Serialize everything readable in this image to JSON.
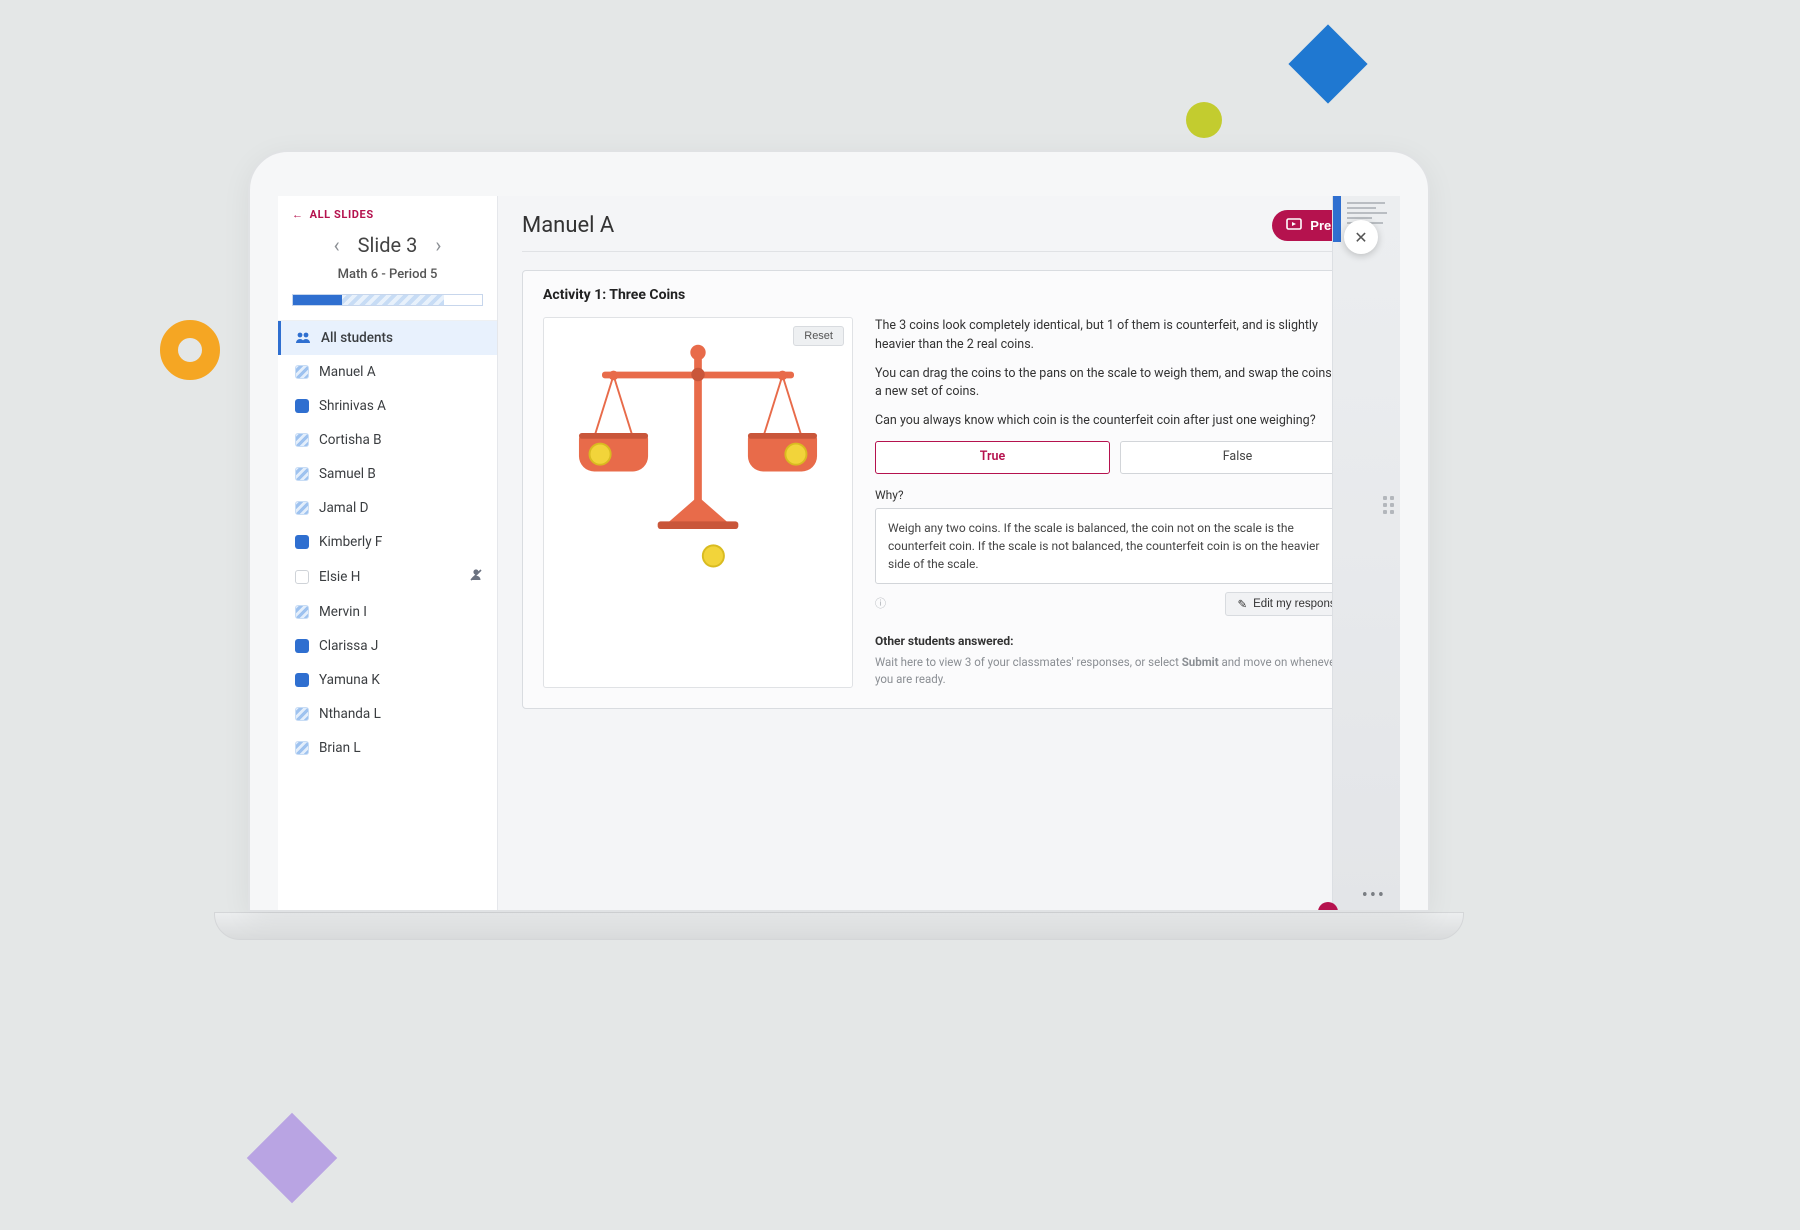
{
  "colors": {
    "accent_magenta": "#b5124e",
    "primary_blue": "#2f6fd0",
    "page_bg": "#e4e7e7",
    "orange_donut": "#f5a623",
    "yellow_dot": "#c3cc2f",
    "blue_diamond": "#1f78d1",
    "lilac_diamond": "#b9a4e3",
    "scale_orange": "#e86b4a",
    "scale_orange_dark": "#c9563a",
    "coin_yellow": "#f2d43a",
    "coin_yellow_dark": "#d9bb20"
  },
  "sidebar": {
    "all_slides": "ALL SLIDES",
    "slide_title": "Slide 3",
    "class_name": "Math 6 - Period 5",
    "progress": {
      "solid_pct": 26,
      "hatch_pct": 54,
      "empty_pct": 20
    },
    "all_students_label": "All students",
    "students": [
      {
        "name": "Manuel A",
        "status": "hatch"
      },
      {
        "name": "Shrinivas A",
        "status": "solid"
      },
      {
        "name": "Cortisha B",
        "status": "hatch"
      },
      {
        "name": "Samuel B",
        "status": "hatch"
      },
      {
        "name": "Jamal D",
        "status": "hatch"
      },
      {
        "name": "Kimberly F",
        "status": "solid"
      },
      {
        "name": "Elsie H",
        "status": "empty",
        "muted": true
      },
      {
        "name": "Mervin I",
        "status": "hatch"
      },
      {
        "name": "Clarissa J",
        "status": "solid"
      },
      {
        "name": "Yamuna K",
        "status": "solid"
      },
      {
        "name": "Nthanda L",
        "status": "hatch"
      },
      {
        "name": "Brian L",
        "status": "hatch"
      }
    ]
  },
  "main": {
    "student_name": "Manuel A",
    "present_label": "Present",
    "activity_title": "Activity 1: Three Coins",
    "reset_label": "Reset",
    "para1": "The 3 coins look completely identical, but 1 of them is counterfeit, and is slightly heavier than the 2 real coins.",
    "para2": "You can drag the coins to the pans on the scale to weigh them, and swap the coins for a new set of coins.",
    "para3": "Can you always know which coin is the counterfeit coin after just one weighing?",
    "true_label": "True",
    "false_label": "False",
    "selected_answer": "True",
    "why_label": "Why?",
    "why_text": "Weigh any two coins. If the scale is balanced, the coin not on the scale is the counterfeit coin. If the scale is not balanced, the counterfeit coin is on the heavier side of the scale.",
    "edit_label": "Edit my response",
    "others_heading": "Other students answered:",
    "others_sub_pre": "Wait here to view 3 of your classmates' responses, or select ",
    "others_sub_bold": "Submit",
    "others_sub_post": " and move on whenever you are ready."
  }
}
